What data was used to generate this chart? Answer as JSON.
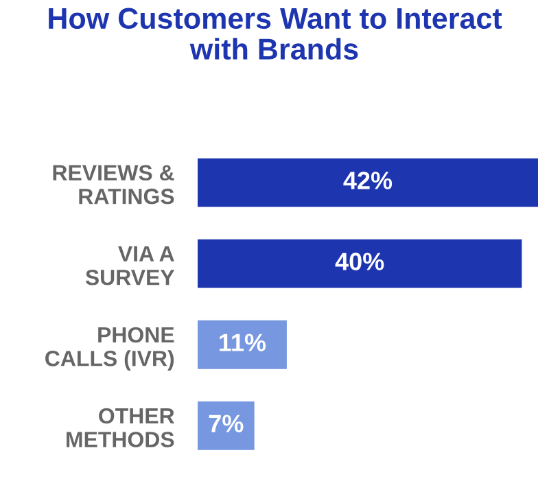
{
  "chart_data": {
    "type": "bar",
    "orientation": "horizontal",
    "title": "How Customers Want to Interact\nwith Brands",
    "categories": [
      "REVIEWS &\nRATINGS",
      "VIA A\nSURVEY",
      "PHONE\nCALLS (IVR)",
      "OTHER\nMETHODS"
    ],
    "values": [
      42,
      40,
      11,
      7
    ],
    "colors": [
      "#1e35b0",
      "#1e35b0",
      "#7797e0",
      "#7797e0"
    ],
    "value_labels": [
      "42%",
      "40%",
      "11%",
      "7%"
    ]
  }
}
